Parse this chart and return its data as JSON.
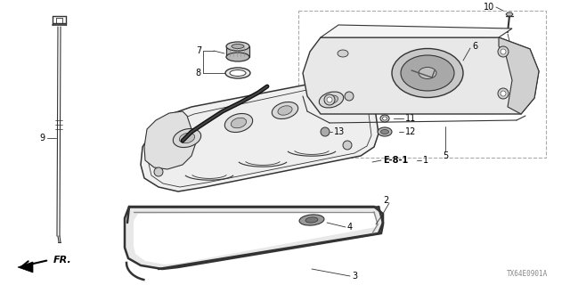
{
  "bg_color": "#ffffff",
  "fig_width": 6.4,
  "fig_height": 3.2,
  "dpi": 100,
  "line_color": "#333333",
  "diagram_code": "TX64E0901A"
}
